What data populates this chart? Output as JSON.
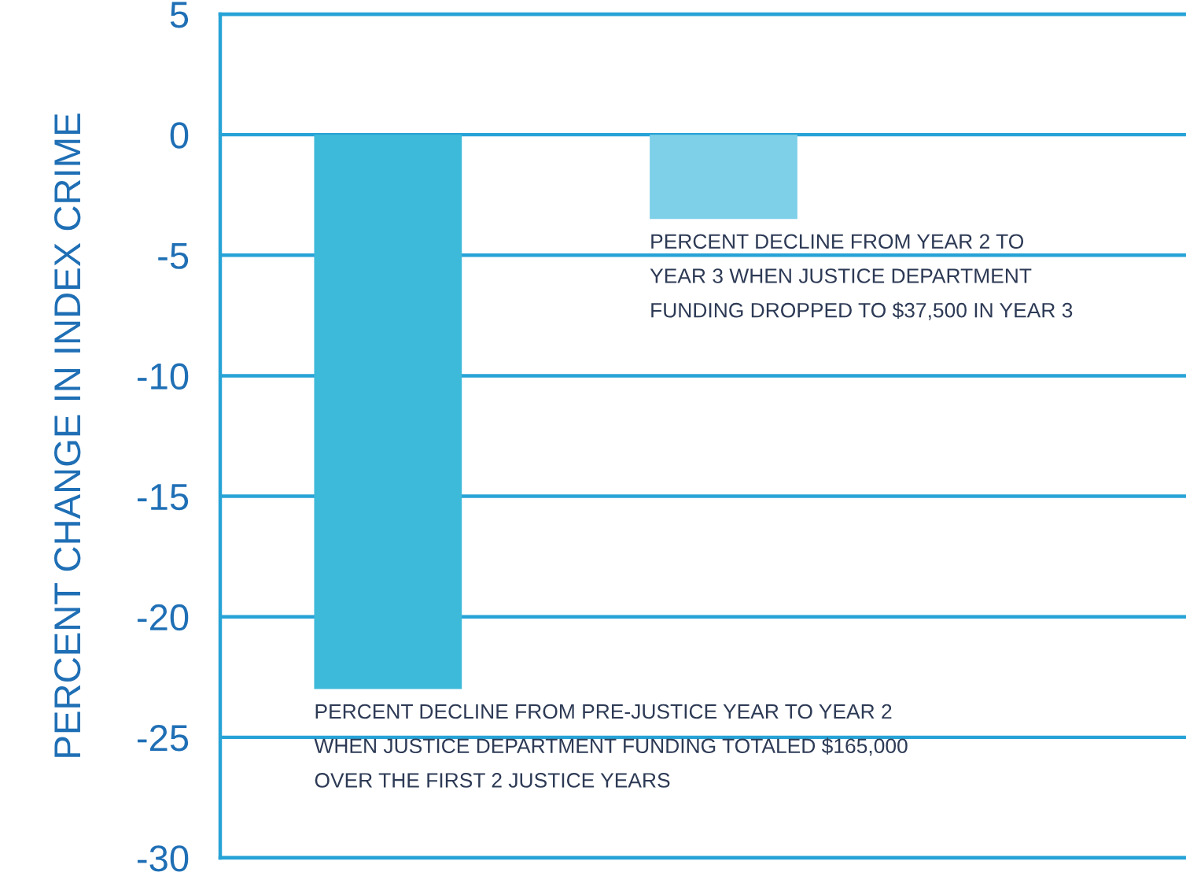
{
  "chart_data": {
    "type": "bar",
    "ylabel": "PERCENT CHANGE IN INDEX CRIME",
    "categories": [
      null,
      null,
      null
    ],
    "values": [
      -23,
      -3.5,
      null
    ],
    "colors": [
      "#3db9d9",
      "#7dd0e8",
      "#7dd0e8"
    ],
    "ylim": [
      -30,
      5
    ],
    "yticks": [
      -30,
      -25,
      -20,
      -15,
      -10,
      -5,
      0,
      5
    ],
    "grid": "y",
    "annotations": [
      "PERCENT DECLINE FROM PRE-JUSTICE YEAR TO YEAR 2\nWHEN JUSTICE DEPARTMENT FUNDING TOTALED $165,000\nOVER THE FIRST 2 JUSTICE YEARS",
      "PERCENT DECLINE FROM YEAR 2 TO\nYEAR 3 WHEN JUSTICE DEPARTMENT\nFUNDING DROPPED TO $37,500 IN YEAR 3"
    ]
  }
}
